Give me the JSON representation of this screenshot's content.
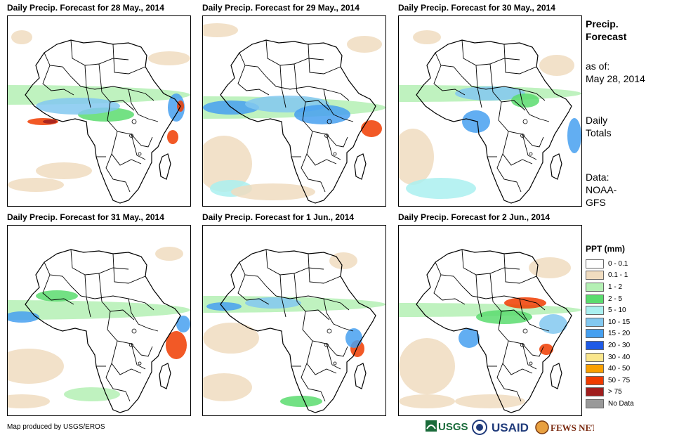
{
  "panels": [
    {
      "title": "Daily Precip. Forecast for 28 May., 2014"
    },
    {
      "title": "Daily Precip. Forecast for 29 May., 2014"
    },
    {
      "title": "Daily Precip. Forecast for 30 May., 2014"
    },
    {
      "title": "Daily Precip. Forecast for 31 May., 2014"
    },
    {
      "title": "Daily Precip. Forecast for 1 Jun., 2014"
    },
    {
      "title": "Daily Precip. Forecast for 2 Jun., 2014"
    }
  ],
  "side_info": {
    "title_line1": "Precip.",
    "title_line2": "Forecast",
    "asof_line1": "as of:",
    "asof_line2": "May 28, 2014",
    "daily_line1": "Daily",
    "daily_line2": "Totals",
    "data_line1": "Data:",
    "data_line2": "NOAA-",
    "data_line3": "GFS"
  },
  "legend": {
    "title": "PPT (mm)",
    "items": [
      {
        "label": "0 - 0.1",
        "color": "#ffffff"
      },
      {
        "label": "0.1 - 1",
        "color": "#f0dcc0"
      },
      {
        "label": "1 - 2",
        "color": "#b4f0b4"
      },
      {
        "label": "2 - 5",
        "color": "#5adc6e"
      },
      {
        "label": "5 - 10",
        "color": "#aaf0f0"
      },
      {
        "label": "10 - 15",
        "color": "#82c8f0"
      },
      {
        "label": "15 - 20",
        "color": "#46a0f0"
      },
      {
        "label": "20 - 30",
        "color": "#1e5ae6"
      },
      {
        "label": "30 - 40",
        "color": "#fae68c"
      },
      {
        "label": "40 - 50",
        "color": "#faa000"
      },
      {
        "label": "50 - 75",
        "color": "#f03c00"
      },
      {
        "label": "> 75",
        "color": "#a01e1e"
      },
      {
        "label": "No Data",
        "color": "#999999"
      }
    ]
  },
  "footer": {
    "credit": "Map produced by USGS/EROS"
  },
  "logos": {
    "usgs": "USGS",
    "usaid": "USAID",
    "fewsnet": "FEWS NET"
  }
}
